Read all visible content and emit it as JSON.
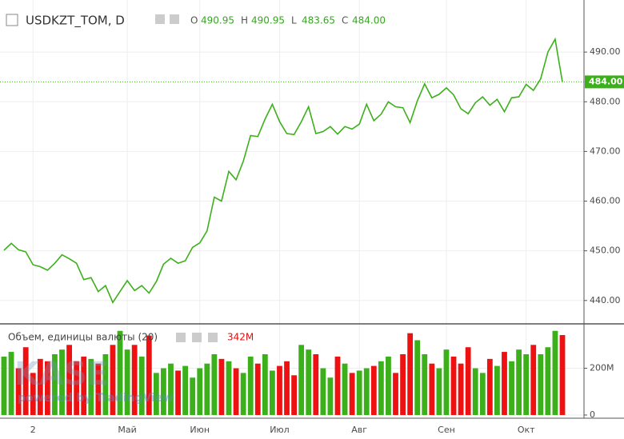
{
  "chart_data": {
    "type": "line",
    "title": "USDKZT_TOM, D",
    "ohlc": [
      {
        "key": "O",
        "value": 490.95
      },
      {
        "key": "H",
        "value": 490.95
      },
      {
        "key": "L",
        "value": 483.65
      },
      {
        "key": "C",
        "value": {
          "value": 484,
          "label": "484.00"
        }
      }
    ],
    "categories": [
      null,
      null,
      null,
      null,
      "2",
      null,
      null,
      null,
      null,
      null,
      null,
      null,
      null,
      null,
      null,
      null,
      null,
      "Май",
      null,
      null,
      null,
      null,
      null,
      null,
      null,
      null,
      null,
      "Июн",
      null,
      null,
      null,
      null,
      null,
      null,
      null,
      null,
      null,
      null,
      "Июл",
      null,
      null,
      null,
      null,
      null,
      null,
      null,
      null,
      null,
      null,
      "Авг",
      null,
      null,
      null,
      null,
      null,
      null,
      null,
      null,
      null,
      null,
      null,
      "Сен",
      null,
      null,
      null,
      null,
      null,
      null,
      null,
      null,
      null,
      null,
      "Окт",
      null,
      null,
      null,
      null,
      null
    ],
    "values": [
      450.1,
      451.5,
      450.2,
      449.8,
      447.2,
      446.8,
      446.1,
      447.5,
      449.2,
      448.4,
      447.5,
      444.2,
      444.6,
      441.8,
      443.0,
      439.6,
      441.8,
      444.0,
      442.0,
      443.0,
      441.5,
      443.8,
      447.3,
      448.5,
      447.5,
      448.0,
      450.7,
      451.6,
      454.0,
      460.8,
      460.0,
      466.0,
      464.3,
      468.0,
      473.2,
      473.0,
      476.5,
      479.5,
      476.0,
      473.6,
      473.4,
      476.0,
      479.0,
      473.6,
      474.0,
      475.0,
      473.5,
      475.0,
      474.5,
      475.5,
      479.5,
      476.2,
      477.5,
      480.0,
      479.0,
      478.8,
      475.8,
      480.2,
      483.6,
      480.8,
      481.5,
      482.8,
      481.4,
      478.6,
      477.6,
      479.8,
      481.0,
      479.3,
      480.5,
      478.0,
      480.8,
      481.0,
      483.5,
      482.3,
      484.6,
      490.0,
      492.6,
      484.0
    ],
    "color": "#3cb01b",
    "ylim": [
      435.3,
      500
    ],
    "yticks": [
      {
        "value": 440,
        "label": "440.00"
      },
      {
        "value": 450,
        "label": "450.00"
      },
      {
        "value": 460,
        "label": "460.00"
      },
      {
        "value": 470,
        "label": "470.00"
      },
      {
        "value": 480,
        "label": "480.00"
      },
      {
        "value": 490,
        "label": "490.00"
      }
    ],
    "last_price": {
      "value": 484,
      "label": "484.00"
    },
    "grid": true,
    "volume": {
      "name": "Объем, единицы валюты (20)",
      "legend_value": "342M",
      "values": [
        250,
        270,
        200,
        290,
        180,
        240,
        230,
        260,
        280,
        300,
        230,
        250,
        240,
        220,
        260,
        300,
        360,
        280,
        300,
        250,
        340,
        180,
        200,
        220,
        190,
        210,
        160,
        200,
        220,
        260,
        240,
        230,
        200,
        180,
        250,
        220,
        260,
        190,
        210,
        230,
        170,
        300,
        280,
        260,
        200,
        160,
        250,
        220,
        180,
        190,
        200,
        210,
        230,
        250,
        180,
        260,
        350,
        320,
        260,
        220,
        200,
        280,
        250,
        220,
        290,
        200,
        180,
        240,
        210,
        270,
        230,
        280,
        260,
        300,
        260,
        290,
        360,
        342
      ],
      "up_color": "#3cb01b",
      "down_color": "#ee1111",
      "ylim": [
        0,
        390
      ],
      "yticks": [
        0,
        {
          "value": 200,
          "label": "200M"
        }
      ]
    },
    "watermark": [
      "KASE",
      "powered by TradingView"
    ]
  }
}
